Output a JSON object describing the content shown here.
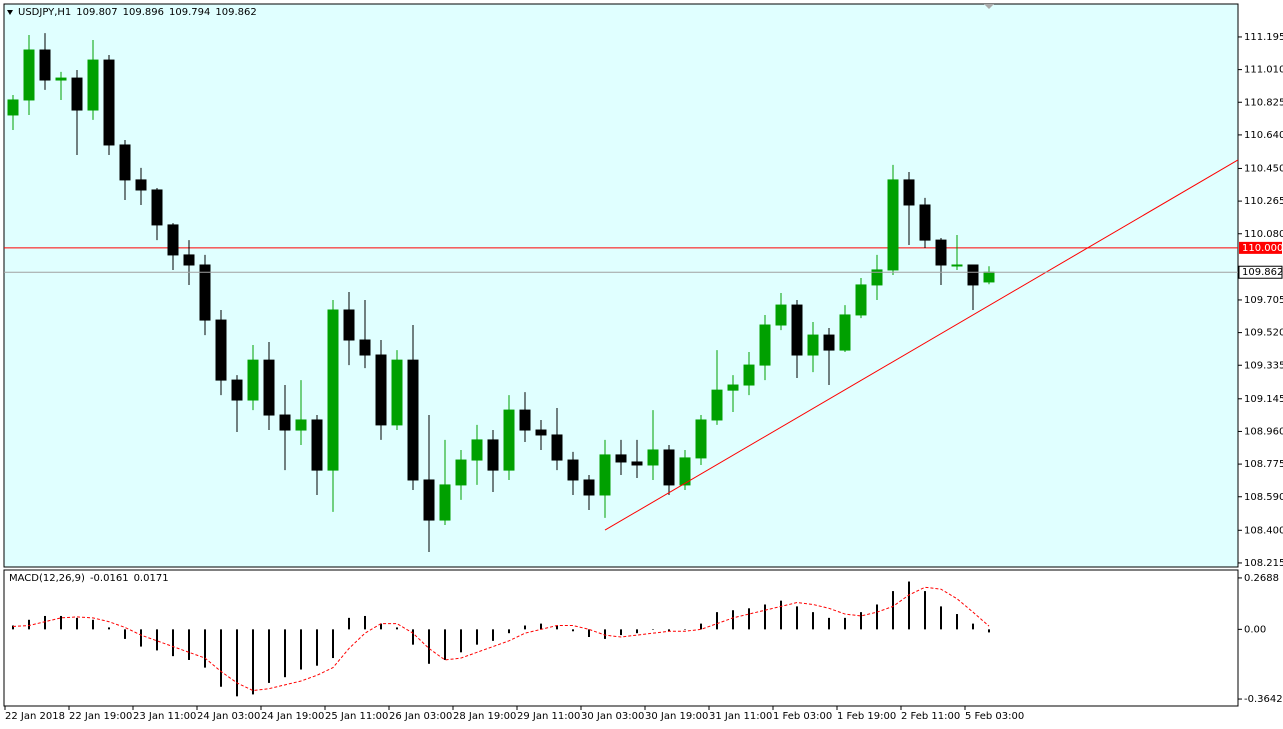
{
  "chart_data": [
    {
      "type": "candlestick",
      "title": "USDJPY,H1",
      "header_values": [
        109.807,
        109.896,
        109.794,
        109.862
      ],
      "categories": [
        "22 Jan 2018",
        null,
        null,
        null,
        "22 Jan 19:00",
        null,
        null,
        null,
        "23 Jan 11:00",
        null,
        null,
        null,
        "24 Jan 03:00",
        null,
        null,
        null,
        "24 Jan 19:00",
        null,
        null,
        null,
        "25 Jan 11:00",
        null,
        null,
        null,
        "26 Jan 03:00",
        null,
        null,
        null,
        "28 Jan 19:00",
        null,
        null,
        null,
        "29 Jan 11:00",
        null,
        null,
        null,
        "30 Jan 03:00",
        null,
        null,
        null,
        "30 Jan 19:00",
        null,
        null,
        null,
        "31 Jan 11:00",
        null,
        null,
        null,
        "1 Feb 03:00",
        null,
        null,
        null,
        "1 Feb 19:00",
        null,
        null,
        null,
        "2 Feb 11:00",
        null,
        null,
        null,
        "5 Feb 03:00",
        null
      ],
      "open": [
        110.753,
        110.838,
        111.121,
        110.951,
        110.962,
        110.781,
        111.064,
        110.583,
        110.385,
        110.328,
        110.13,
        109.96,
        109.903,
        109.591,
        109.251,
        109.138,
        109.364,
        109.053,
        108.968,
        109.025,
        108.741,
        109.648,
        109.478,
        109.393,
        108.997,
        109.364,
        108.685,
        108.458,
        108.657,
        108.798,
        108.912,
        108.741,
        109.081,
        108.968,
        108.94,
        108.798,
        108.685,
        108.6,
        108.827,
        108.787,
        108.77,
        108.855,
        108.657,
        108.81,
        109.025,
        109.194,
        109.223,
        109.336,
        109.563,
        109.676,
        109.393,
        109.506,
        109.421,
        109.62,
        109.79,
        109.875,
        110.385,
        110.243,
        110.044,
        109.903,
        109.903,
        109.807
      ],
      "high": [
        110.866,
        111.206,
        111.217,
        110.997,
        111.008,
        111.178,
        111.093,
        110.611,
        110.453,
        110.339,
        110.14,
        110.044,
        109.96,
        109.648,
        109.279,
        109.45,
        109.467,
        109.223,
        109.251,
        109.053,
        109.705,
        109.75,
        109.705,
        109.478,
        109.421,
        109.563,
        109.053,
        108.912,
        108.855,
        108.997,
        108.968,
        109.166,
        109.183,
        109.025,
        109.093,
        108.844,
        108.713,
        108.912,
        108.912,
        108.912,
        109.081,
        108.883,
        108.855,
        109.053,
        109.421,
        109.279,
        109.41,
        109.62,
        109.744,
        109.705,
        109.58,
        109.546,
        109.676,
        109.829,
        109.96,
        110.47,
        110.43,
        110.283,
        110.056,
        110.073,
        109.903,
        109.896
      ],
      "low": [
        110.668,
        110.753,
        110.895,
        110.838,
        110.526,
        110.725,
        110.526,
        110.271,
        110.243,
        110.044,
        109.875,
        109.79,
        109.506,
        109.166,
        108.957,
        109.081,
        108.968,
        108.741,
        108.883,
        108.6,
        108.504,
        109.336,
        109.319,
        108.912,
        108.968,
        108.628,
        108.277,
        108.43,
        108.572,
        108.657,
        108.617,
        108.685,
        108.9,
        108.855,
        108.741,
        108.6,
        108.515,
        108.47,
        108.713,
        108.696,
        108.685,
        108.6,
        108.628,
        108.77,
        108.997,
        109.07,
        109.166,
        109.251,
        109.534,
        109.263,
        109.296,
        109.223,
        109.41,
        109.602,
        109.705,
        109.846,
        110.016,
        109.999,
        109.79,
        109.875,
        109.648,
        109.794
      ],
      "close": [
        110.838,
        111.121,
        110.951,
        110.962,
        110.781,
        111.064,
        110.583,
        110.385,
        110.328,
        110.13,
        109.96,
        109.903,
        109.591,
        109.251,
        109.138,
        109.364,
        109.053,
        108.968,
        109.025,
        108.741,
        109.648,
        109.478,
        109.393,
        108.997,
        109.364,
        108.685,
        108.458,
        108.657,
        108.798,
        108.912,
        108.741,
        109.081,
        108.968,
        108.94,
        108.798,
        108.685,
        108.6,
        108.827,
        108.787,
        108.77,
        108.855,
        108.657,
        108.81,
        109.025,
        109.194,
        109.223,
        109.336,
        109.563,
        109.676,
        109.393,
        109.506,
        109.421,
        109.62,
        109.79,
        109.875,
        110.385,
        110.243,
        110.044,
        109.903,
        109.903,
        109.79,
        109.862
      ],
      "up_color": "#00a000",
      "down_color": "#000000",
      "background": "#e0ffff",
      "ylim": [
        108.192,
        111.376
      ],
      "yticks": [
        111.195,
        {
          "value": 111.01,
          "label": "111.010"
        },
        110.825,
        {
          "value": 110.64,
          "label": "110.640"
        },
        {
          "value": 110.45,
          "label": "110.450"
        },
        110.265,
        {
          "value": 110.08,
          "label": "110.080"
        },
        109.705,
        {
          "value": 109.52,
          "label": "109.520"
        },
        109.335,
        109.145,
        {
          "value": 108.96,
          "label": "108.960"
        },
        108.775,
        {
          "value": 108.59,
          "label": "108.590"
        },
        {
          "value": 108.4,
          "label": "108.400"
        },
        108.215
      ],
      "hline": {
        "value": 110,
        "label": "110.000"
      },
      "hline_color": "#ff0000",
      "trendline": {
        "x": [
          37.5,
          77.06
        ],
        "y": [
          108.401,
          110.498
        ]
      },
      "trendline_color": "#ff0000"
    },
    {
      "type": "macd",
      "title": "MACD(12,26,9)",
      "indicator_values": [
        -0.0161,
        0.0171
      ],
      "values": [
        0.02,
        0.05,
        0.07,
        0.07,
        0.06,
        0.05,
        0.01,
        -0.05,
        -0.09,
        -0.11,
        -0.14,
        -0.16,
        -0.2,
        -0.3,
        -0.35,
        -0.34,
        -0.28,
        -0.25,
        -0.21,
        -0.19,
        -0.15,
        0.06,
        0.07,
        0.03,
        0.01,
        -0.08,
        -0.18,
        -0.16,
        -0.12,
        -0.08,
        -0.06,
        -0.02,
        0.02,
        0.03,
        0.02,
        -0.01,
        -0.04,
        -0.05,
        -0.03,
        -0.02,
        0,
        -0.01,
        0,
        0.03,
        0.09,
        0.1,
        0.11,
        0.13,
        0.15,
        0.12,
        0.09,
        0.06,
        0.06,
        0.09,
        0.13,
        0.2,
        0.25,
        0.2,
        0.12,
        0.08,
        0.03,
        -0.016
      ],
      "signal": [
        0.015,
        0.02,
        0.04,
        0.06,
        0.065,
        0.06,
        0.04,
        0.01,
        -0.03,
        -0.06,
        -0.09,
        -0.12,
        -0.15,
        -0.22,
        -0.28,
        -0.32,
        -0.31,
        -0.29,
        -0.27,
        -0.24,
        -0.2,
        -0.1,
        -0.02,
        0.03,
        0.03,
        -0.02,
        -0.1,
        -0.16,
        -0.15,
        -0.12,
        -0.09,
        -0.06,
        -0.02,
        0,
        0.02,
        0.02,
        0,
        -0.03,
        -0.04,
        -0.03,
        -0.02,
        -0.01,
        -0.01,
        0,
        0.03,
        0.06,
        0.08,
        0.1,
        0.12,
        0.14,
        0.13,
        0.11,
        0.08,
        0.07,
        0.09,
        0.12,
        0.18,
        0.22,
        0.21,
        0.16,
        0.09,
        0.017
      ],
      "color": "#000000",
      "signal_color": "#ff0000",
      "ylim": [
        -0.4006,
        0.305
      ],
      "yticks": [
        0.2688,
        {
          "value": 0,
          "label": "0.00"
        },
        -0.3642
      ]
    }
  ]
}
